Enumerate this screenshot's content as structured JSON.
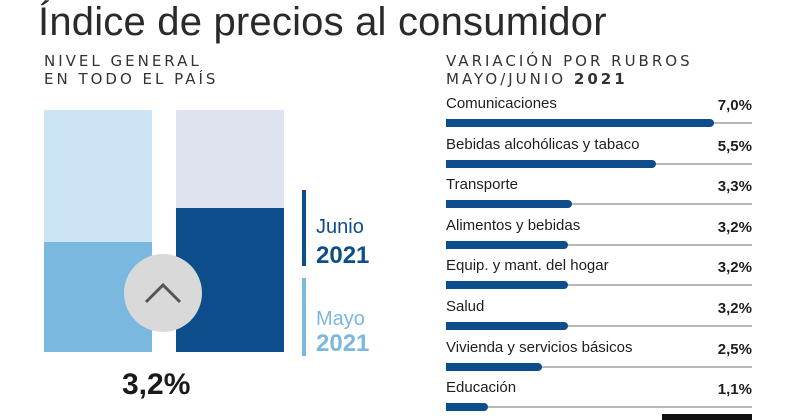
{
  "header": {
    "title": "Índice de precios al consumidor",
    "left_subtitle_line1": "NIVEL GENERAL",
    "left_subtitle_line2": "EN TODO EL PAÍS",
    "right_subtitle_line1": "VARIACIÓN POR RUBROS",
    "right_subtitle_line2_prefix": "MAYO/JUNIO",
    "right_subtitle_line2_year": "2021"
  },
  "general": {
    "variation_label": "3,2%",
    "icon": "chevron-up-icon",
    "june": {
      "month": "Junio",
      "year": "2021",
      "color": "#0d4d8c",
      "bg_color": "#dfe3ef"
    },
    "may": {
      "month": "Mayo",
      "year": "2021",
      "color": "#7ab8e0",
      "bg_color": "#cce5f5"
    }
  },
  "colors": {
    "accent": "#0d4d8c",
    "track": "#b8b8b8"
  },
  "chart_data": {
    "type": "bar",
    "categories": [
      "Comunicaciones",
      "Bebidas alcohólicas y tabaco",
      "Transporte",
      "Alimentos y bebidas",
      "Equip. y mant. del hogar",
      "Salud",
      "Vivienda y servicios básicos",
      "Educación"
    ],
    "values": [
      7.0,
      5.5,
      3.3,
      3.2,
      3.2,
      3.2,
      2.5,
      1.1
    ],
    "value_labels": [
      "7,0%",
      "5,5%",
      "3,3%",
      "3,2%",
      "3,2%",
      "3,2%",
      "2,5%",
      "1,1%"
    ],
    "xlim": [
      0,
      8
    ],
    "orientation": "horizontal"
  }
}
